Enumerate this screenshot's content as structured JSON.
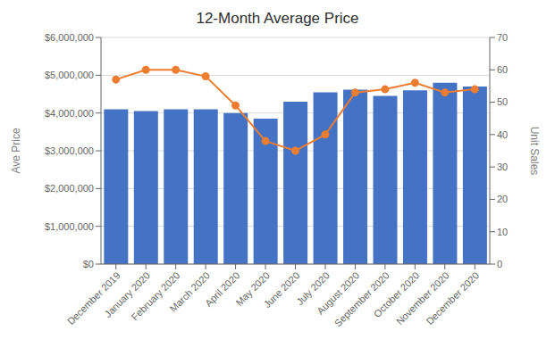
{
  "chart_data": {
    "type": "bar",
    "title": "12-Month Average Price",
    "categories": [
      "December 2019",
      "January 2020",
      "February 2020",
      "March 2020",
      "April 2020",
      "May 2020",
      "June 2020",
      "July 2020",
      "August 2020",
      "September 2020",
      "October 2020",
      "November 2020",
      "December 2020"
    ],
    "series": [
      {
        "type": "bar",
        "color": "#4472C4",
        "values": [
          4100000,
          4050000,
          4100000,
          4100000,
          4000000,
          3850000,
          4300000,
          4550000,
          4620000,
          4450000,
          4600000,
          4800000,
          4700000
        ]
      },
      {
        "type": "line",
        "axis": "y2",
        "color": "#ED7D31",
        "marker": "circle",
        "values": [
          57,
          60,
          60,
          58,
          49,
          38,
          35,
          40,
          53,
          54,
          56,
          53,
          54
        ]
      }
    ],
    "ylabel": "Ave Price",
    "y2label": "Unit Sales",
    "ylim": [
      0,
      6000000
    ],
    "yticks": [
      {
        "value": 0,
        "label": "$0"
      },
      {
        "value": 1000000,
        "label": "$1,000,000"
      },
      {
        "value": 2000000,
        "label": "$2,000,000"
      },
      {
        "value": 3000000,
        "label": "$3,000,000"
      },
      {
        "value": 4000000,
        "label": "$4,000,000"
      },
      {
        "value": 5000000,
        "label": "$5,000,000"
      },
      {
        "value": 6000000,
        "label": "$6,000,000"
      }
    ],
    "y2lim": [
      0,
      70
    ],
    "y2ticks": [
      0,
      10,
      20,
      30,
      40,
      50,
      60,
      70
    ],
    "grid": true
  }
}
